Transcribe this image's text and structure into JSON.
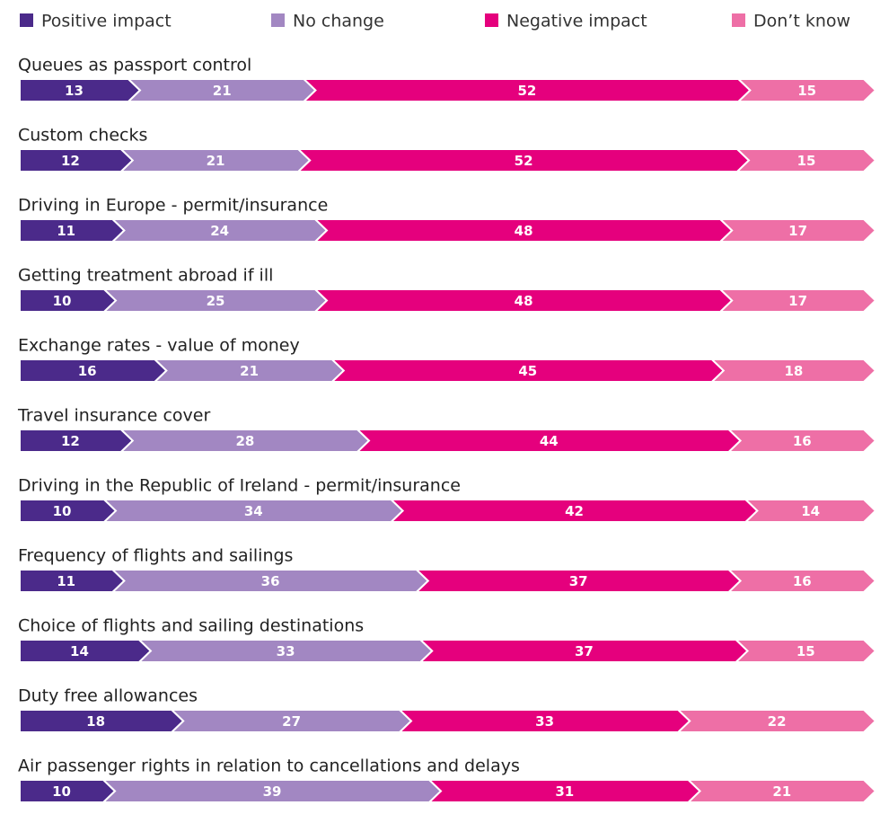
{
  "chart_data": {
    "type": "stacked-chevron-bar",
    "categories": [
      "Queues as passport control",
      "Custom checks",
      "Driving in Europe - permit/insurance",
      "Getting treatment abroad if ill",
      "Exchange rates - value of money",
      "Travel insurance cover",
      "Driving in the Republic of Ireland - permit/insurance",
      "Frequency of flights and sailings",
      "Choice of flights and sailing destinations",
      "Duty free allowances",
      "Air passenger rights in relation to cancellations and delays"
    ],
    "series": [
      {
        "name": "Positive impact",
        "color": "#4b2a8a",
        "values": [
          13,
          12,
          11,
          10,
          16,
          12,
          10,
          11,
          14,
          18,
          10
        ]
      },
      {
        "name": "No change",
        "color": "#a287c2",
        "values": [
          21,
          21,
          24,
          25,
          21,
          28,
          34,
          36,
          33,
          27,
          39
        ]
      },
      {
        "name": "Negative impact",
        "color": "#e5007d",
        "values": [
          52,
          52,
          48,
          48,
          45,
          44,
          42,
          37,
          37,
          33,
          31
        ]
      },
      {
        "name": "Don’t know",
        "color": "#ee6fa6",
        "values": [
          15,
          15,
          17,
          17,
          18,
          16,
          14,
          16,
          15,
          22,
          21
        ]
      }
    ],
    "legend": "top"
  }
}
